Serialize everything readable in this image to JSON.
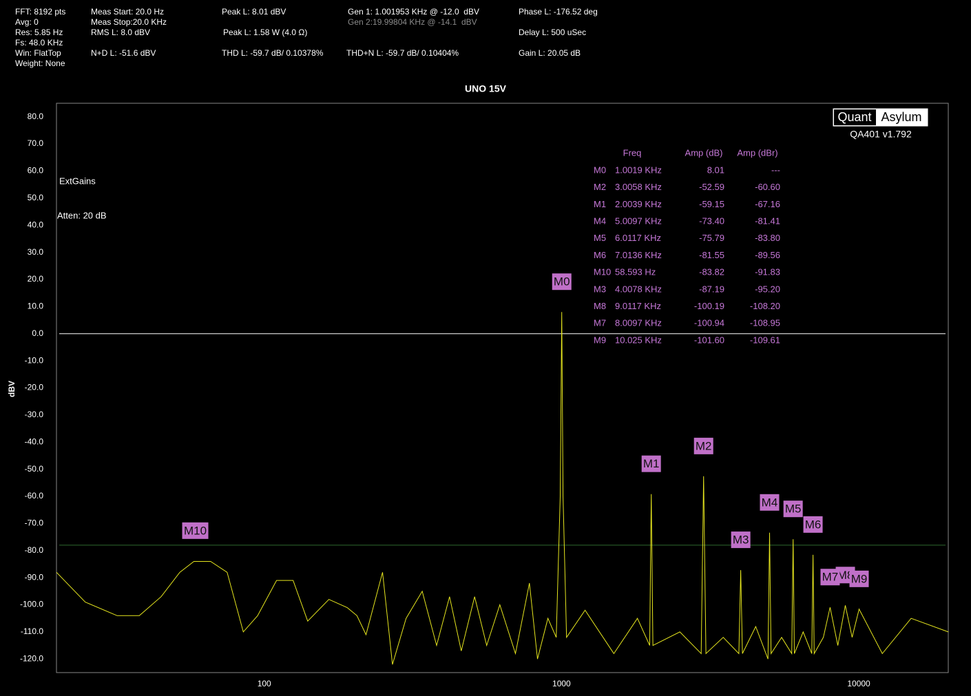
{
  "header": {
    "col1": [
      "FFT: 8192 pts",
      "Avg: 0",
      "Res: 5.85 Hz",
      "Fs: 48.0 KHz",
      "Win: FlatTop",
      "Weight: None"
    ],
    "col2": [
      "Meas Start: 20.0 Hz",
      "Meas Stop:20.0 KHz",
      "RMS L: 8.0 dBV",
      "N+D L: -51.6 dBV"
    ],
    "col3": [
      "Peak L: 8.01 dBV",
      "Peak L: 1.58 W (4.0 Ω)",
      "THD L: -59.7 dB/ 0.10378%"
    ],
    "col4": [
      "Gen 1: 1.001953 KHz @ -12.0  dBV",
      "Gen 2:19.99804 KHz @ -14.1  dBV",
      "THD+N L: -59.7 dB/ 0.10404%"
    ],
    "col5": [
      "Phase L: -176.52 deg",
      "Delay L: 500 uSec",
      "Gain L: 20.05 dB"
    ]
  },
  "chart_data": {
    "type": "line",
    "title": "UNO 15V",
    "y_label": "dBV",
    "xscale": "log",
    "xlim": [
      20,
      20000
    ],
    "ylim": [
      -125,
      85
    ],
    "xticks": [
      100,
      1000,
      10000
    ],
    "yticks": [
      {
        "value": 80,
        "label": "80.0"
      },
      {
        "value": 70,
        "label": "70.0"
      },
      {
        "value": 60,
        "label": "60.0"
      },
      {
        "value": 50,
        "label": "50.0"
      },
      {
        "value": 40,
        "label": "40.0"
      },
      {
        "value": 30,
        "label": "30.0"
      },
      {
        "value": 20,
        "label": "20.0"
      },
      {
        "value": 10,
        "label": "10.0"
      },
      {
        "value": 0,
        "label": "0.0"
      },
      {
        "value": -10,
        "label": "-10.0"
      },
      {
        "value": -20,
        "label": "-20.0"
      },
      {
        "value": -30,
        "label": "-30.0"
      },
      {
        "value": -40,
        "label": "-40.0"
      },
      {
        "value": -50,
        "label": "-50.0"
      },
      {
        "value": -60,
        "label": "-60.0"
      },
      {
        "value": -70,
        "label": "-70.0"
      },
      {
        "value": -80,
        "label": "-80.0"
      },
      {
        "value": -90,
        "label": "-90.0"
      },
      {
        "value": -100,
        "label": "-100.0"
      },
      {
        "value": -110,
        "label": "-110.0"
      },
      {
        "value": -120,
        "label": "-120.0"
      }
    ],
    "grid": false,
    "annotations": [
      "ExtGains",
      "Atten: 20 dB"
    ],
    "logo": [
      "Quant",
      "Asylum"
    ],
    "version": "QA401 v1.792",
    "reference_lines": [
      {
        "value": 0,
        "color": "#ffffff"
      },
      {
        "value": -78,
        "color": "#2f6a2f"
      }
    ],
    "series": [
      {
        "color": "#e6e61e",
        "x": [
          20,
          25,
          32,
          38,
          45,
          52,
          58,
          66,
          75,
          85,
          95,
          110,
          125,
          140,
          165,
          190,
          205,
          220,
          250,
          270,
          300,
          340,
          380,
          420,
          460,
          510,
          560,
          620,
          700,
          780,
          830,
          900,
          960,
          990,
          1001.9,
          1012,
          1040,
          1200,
          1500,
          1800,
          1980,
          2003.9,
          2030,
          2500,
          2950,
          3005.8,
          3060,
          3500,
          3950,
          4007.8,
          4060,
          4500,
          4950,
          5009.7,
          5070,
          5500,
          5950,
          6011.7,
          6070,
          6500,
          6950,
          7013.6,
          7080,
          7600,
          8009.7,
          8500,
          9011.7,
          9500,
          10025,
          12000,
          15000,
          20000
        ],
        "values": [
          -88,
          -99,
          -104,
          -104,
          -97,
          -88,
          -84,
          -84,
          -88,
          -110,
          -104,
          -91,
          -91,
          -106,
          -98,
          -101,
          -104,
          -111,
          -88,
          -122,
          -105,
          -95,
          -115,
          -97,
          -117,
          -97,
          -115,
          -100,
          -118,
          -92,
          -120,
          -105,
          -112,
          -60,
          8.01,
          -60,
          -112,
          -102,
          -118,
          -105,
          -115,
          -59.15,
          -115,
          -110,
          -118,
          -52.59,
          -118,
          -112,
          -118,
          -87.19,
          -118,
          -108,
          -120,
          -73.4,
          -118,
          -112,
          -118,
          -75.79,
          -118,
          -110,
          -118,
          -81.55,
          -118,
          -112,
          -100.94,
          -115,
          -100.19,
          -112,
          -101.6,
          -118,
          -105,
          -110
        ]
      }
    ],
    "markers": {
      "columns": [
        "Freq",
        "Amp (dB)",
        "Amp (dBr)"
      ],
      "names": [
        "M0",
        "M2",
        "M1",
        "M4",
        "M5",
        "M6",
        "M10",
        "M3",
        "M8",
        "M7",
        "M9"
      ],
      "x": [
        1001.9,
        3005.8,
        2003.9,
        5009.7,
        6011.7,
        7013.6,
        58.593,
        4007.8,
        9011.7,
        8009.7,
        10025
      ],
      "x_labels": [
        "1.0019 KHz",
        "3.0058 KHz",
        "2.0039 KHz",
        "5.0097 KHz",
        "6.0117 KHz",
        "7.0136 KHz",
        "58.593 Hz",
        "4.0078 KHz",
        "9.0117 KHz",
        "8.0097 KHz",
        "10.025 KHz"
      ],
      "values": [
        8.01,
        -52.59,
        -59.15,
        -73.4,
        -75.79,
        -81.55,
        -83.82,
        -87.19,
        -100.19,
        -100.94,
        -101.6
      ],
      "value_labels": [
        "8.01",
        "-52.59",
        "-59.15",
        "-73.40",
        "-75.79",
        "-81.55",
        "-83.82",
        "-87.19",
        "-100.19",
        "-100.94",
        "-101.60"
      ],
      "dbr": [
        "---",
        "-60.60",
        "-67.16",
        "-81.41",
        "-83.80",
        "-89.56",
        "-91.83",
        "-95.20",
        "-108.20",
        "-108.95",
        "-109.61"
      ]
    }
  }
}
